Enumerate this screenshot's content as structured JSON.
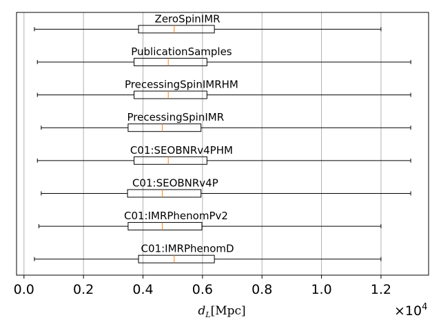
{
  "chart_data": {
    "type": "boxplot",
    "orientation": "horizontal",
    "xlabel": "d_L[Mpc]",
    "x_multiplier": "×10^4",
    "xlim": [
      -250,
      13600
    ],
    "xticks": [
      0,
      2000,
      4000,
      6000,
      8000,
      10000,
      12000
    ],
    "xtick_labels": [
      "0.0",
      "0.2",
      "0.4",
      "0.6",
      "0.8",
      "1.0",
      "1.2"
    ],
    "grid": "x",
    "colors": {
      "box": "#000000",
      "median": "#ff7f0e",
      "grid": "#b0b0b0",
      "frame": "#000000"
    },
    "series": [
      {
        "name": "ZeroSpinIMR",
        "whisker_low": 350,
        "q1": 3850,
        "median": 5050,
        "q3": 6400,
        "whisker_high": 12000
      },
      {
        "name": "PublicationSamples",
        "whisker_low": 450,
        "q1": 3700,
        "median": 4850,
        "q3": 6150,
        "whisker_high": 13000
      },
      {
        "name": "PrecessingSpinIMRHM",
        "whisker_low": 450,
        "q1": 3700,
        "median": 4850,
        "q3": 6150,
        "whisker_high": 13000
      },
      {
        "name": "PrecessingSpinIMR",
        "whisker_low": 580,
        "q1": 3500,
        "median": 4650,
        "q3": 5950,
        "whisker_high": 13000
      },
      {
        "name": "C01:SEOBNRv4PHM",
        "whisker_low": 450,
        "q1": 3700,
        "median": 4850,
        "q3": 6150,
        "whisker_high": 13000
      },
      {
        "name": "C01:SEOBNRv4P",
        "whisker_low": 580,
        "q1": 3480,
        "median": 4650,
        "q3": 5950,
        "whisker_high": 13000
      },
      {
        "name": "C01:IMRPhenomPv2",
        "whisker_low": 500,
        "q1": 3500,
        "median": 4650,
        "q3": 5980,
        "whisker_high": 12000
      },
      {
        "name": "C01:IMRPhenomD",
        "whisker_low": 350,
        "q1": 3850,
        "median": 5050,
        "q3": 6400,
        "whisker_high": 12000
      }
    ]
  }
}
